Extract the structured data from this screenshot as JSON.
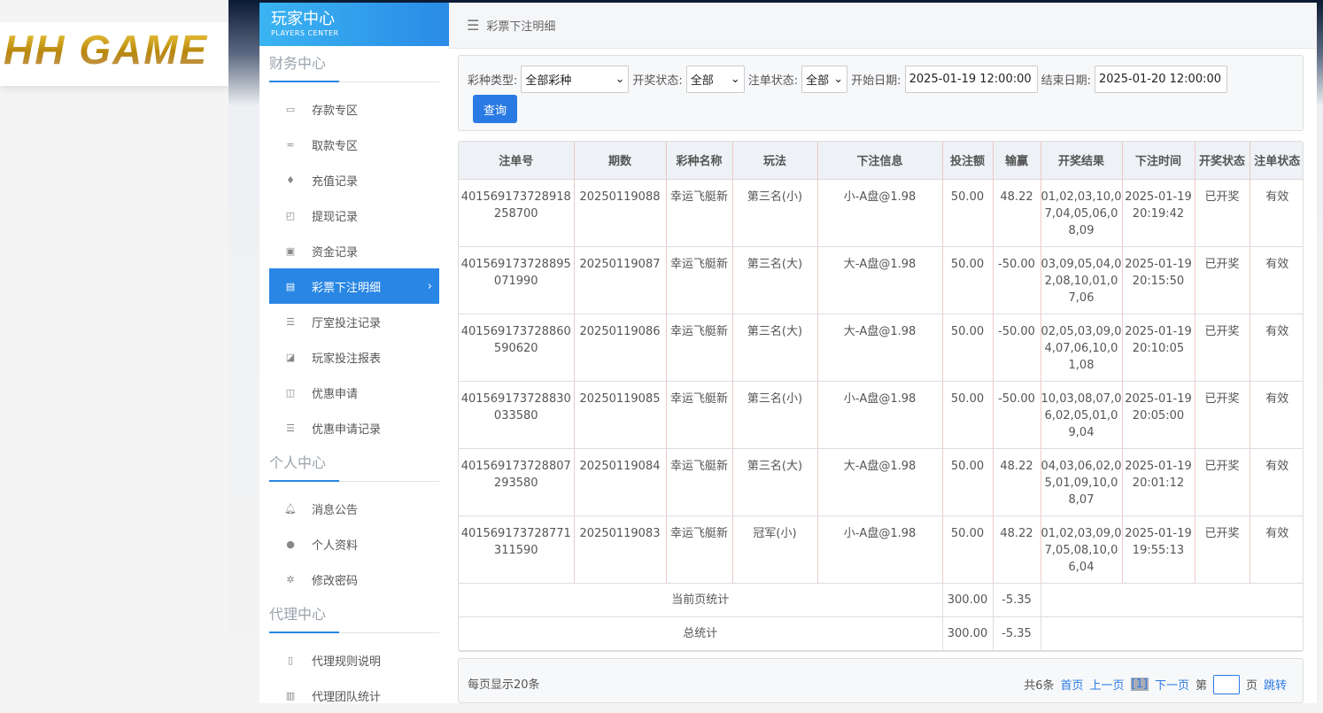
{
  "logo": {
    "text": "HH GAME"
  },
  "sidebar": {
    "title": "玩家中心",
    "subtitle": "PLAYERS CENTER",
    "sections": [
      {
        "title": "财务中心",
        "items": [
          {
            "label": "存款专区",
            "icon": "card-icon"
          },
          {
            "label": "取款专区",
            "icon": "hand-cash-icon"
          },
          {
            "label": "充值记录",
            "icon": "money-bag-icon"
          },
          {
            "label": "提现记录",
            "icon": "wallet-icon"
          },
          {
            "label": "资金记录",
            "icon": "safe-icon"
          },
          {
            "label": "彩票下注明细",
            "icon": "list-icon",
            "active": true
          },
          {
            "label": "厅室投注记录",
            "icon": "list-bullets-icon"
          },
          {
            "label": "玩家投注报表",
            "icon": "chart-icon"
          },
          {
            "label": "优惠申请",
            "icon": "gift-icon"
          },
          {
            "label": "优惠申请记录",
            "icon": "list-bullets-icon"
          }
        ]
      },
      {
        "title": "个人中心",
        "items": [
          {
            "label": "消息公告",
            "icon": "bell-icon"
          },
          {
            "label": "个人资料",
            "icon": "user-icon"
          },
          {
            "label": "修改密码",
            "icon": "gear-icon"
          }
        ]
      },
      {
        "title": "代理中心",
        "items": [
          {
            "label": "代理规则说明",
            "icon": "file-icon"
          },
          {
            "label": "代理团队统计",
            "icon": "book-icon"
          }
        ]
      }
    ]
  },
  "header": {
    "title": "彩票下注明细"
  },
  "filter": {
    "lottery_label": "彩种类型:",
    "lottery_value": "全部彩种",
    "draw_label": "开奖状态:",
    "draw_value": "全部",
    "bet_label": "注单状态:",
    "bet_value": "全部",
    "start_label": "开始日期:",
    "start_value": "2025-01-19 12:00:00",
    "end_label": "结束日期:",
    "end_value": "2025-01-20 12:00:00",
    "query_button": "查询"
  },
  "table": {
    "columns": [
      "注单号",
      "期数",
      "彩种名称",
      "玩法",
      "下注信息",
      "投注额",
      "输赢",
      "开奖结果",
      "下注时间",
      "开奖状态",
      "注单状态"
    ],
    "rows": [
      [
        "401569173728918258700",
        "20250119088",
        "幸运飞艇新",
        "第三名(小)",
        "小-A盘@1.98",
        "50.00",
        "48.22",
        "01,02,03,10,07,04,05,06,08,09",
        "2025-01-19 20:19:42",
        "已开奖",
        "有效"
      ],
      [
        "401569173728895071990",
        "20250119087",
        "幸运飞艇新",
        "第三名(大)",
        "大-A盘@1.98",
        "50.00",
        "-50.00",
        "03,09,05,04,02,08,10,01,07,06",
        "2025-01-19 20:15:50",
        "已开奖",
        "有效"
      ],
      [
        "401569173728860590620",
        "20250119086",
        "幸运飞艇新",
        "第三名(大)",
        "大-A盘@1.98",
        "50.00",
        "-50.00",
        "02,05,03,09,04,07,06,10,01,08",
        "2025-01-19 20:10:05",
        "已开奖",
        "有效"
      ],
      [
        "401569173728830033580",
        "20250119085",
        "幸运飞艇新",
        "第三名(小)",
        "小-A盘@1.98",
        "50.00",
        "-50.00",
        "10,03,08,07,06,02,05,01,09,04",
        "2025-01-19 20:05:00",
        "已开奖",
        "有效"
      ],
      [
        "401569173728807293580",
        "20250119084",
        "幸运飞艇新",
        "第三名(大)",
        "大-A盘@1.98",
        "50.00",
        "48.22",
        "04,03,06,02,05,01,09,10,08,07",
        "2025-01-19 20:01:12",
        "已开奖",
        "有效"
      ],
      [
        "401569173728771311590",
        "20250119083",
        "幸运飞艇新",
        "冠军(小)",
        "小-A盘@1.98",
        "50.00",
        "48.22",
        "01,02,03,09,07,05,08,10,06,04",
        "2025-01-19 19:55:13",
        "已开奖",
        "有效"
      ]
    ],
    "summary": [
      {
        "label": "当前页统计",
        "amount": "300.00",
        "winloss": "-5.35"
      },
      {
        "label": "总统计",
        "amount": "300.00",
        "winloss": "-5.35"
      }
    ]
  },
  "pager": {
    "per_page": "每页显示20条",
    "total": "共6条",
    "first": "首页",
    "prev": "上一页",
    "current": "[1]",
    "next": "下一页",
    "page_prefix": "第",
    "page_suffix": "页",
    "jump": "跳转"
  },
  "colors": {
    "accent": "#2a86e4",
    "header_gradient_start": "#3ab4f2"
  }
}
